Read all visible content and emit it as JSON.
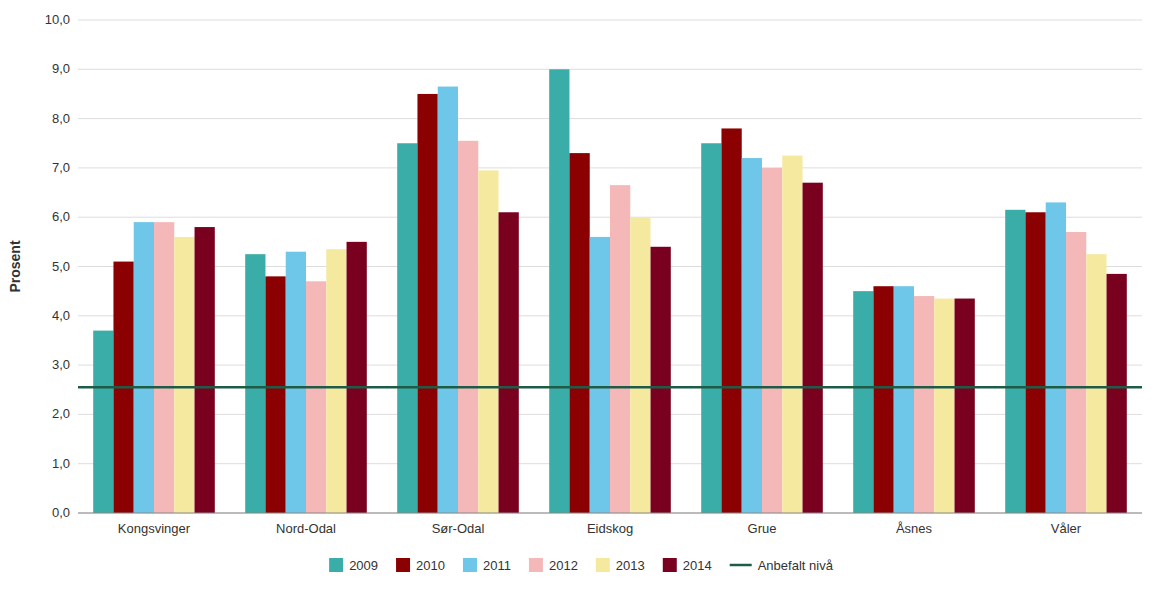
{
  "chart_data": {
    "type": "bar",
    "y_label": "Prosent",
    "categories": [
      "Kongsvinger",
      "Nord-Odal",
      "Sør-Odal",
      "Eidskog",
      "Grue",
      "Åsnes",
      "Våler"
    ],
    "series": [
      {
        "name": "2009",
        "color": "#3aada8",
        "values": [
          3.7,
          5.25,
          7.5,
          9.0,
          7.5,
          4.5,
          6.15
        ]
      },
      {
        "name": "2010",
        "color": "#8B0000",
        "values": [
          5.1,
          4.8,
          8.5,
          7.3,
          7.8,
          4.6,
          6.1
        ]
      },
      {
        "name": "2011",
        "color": "#6ec6e8",
        "values": [
          5.9,
          5.3,
          8.65,
          5.6,
          7.2,
          4.6,
          6.3
        ]
      },
      {
        "name": "2012",
        "color": "#f4b8b8",
        "values": [
          5.9,
          4.7,
          7.55,
          6.65,
          7.0,
          4.4,
          5.7
        ]
      },
      {
        "name": "2013",
        "color": "#f5e9a0",
        "values": [
          5.6,
          5.35,
          6.95,
          6.0,
          7.25,
          4.35,
          5.25
        ]
      },
      {
        "name": "2014",
        "color": "#7a0020",
        "values": [
          5.8,
          5.5,
          6.1,
          5.4,
          6.7,
          4.35,
          4.85
        ]
      }
    ],
    "reference_lines": [
      {
        "name": "Anbefalt nivå",
        "value": 2.55,
        "color": "#1f5c47"
      }
    ],
    "ylim": [
      0.0,
      10.0
    ],
    "yticks": [
      {
        "value": 0.0,
        "label": "0,0"
      },
      {
        "value": 1.0,
        "label": "1,0"
      },
      {
        "value": 2.0,
        "label": "2,0"
      },
      {
        "value": 3.0,
        "label": "3,0"
      },
      {
        "value": 4.0,
        "label": "4,0"
      },
      {
        "value": 5.0,
        "label": "5,0"
      },
      {
        "value": 6.0,
        "label": "6,0"
      },
      {
        "value": 7.0,
        "label": "7,0"
      },
      {
        "value": 8.0,
        "label": "8,0"
      },
      {
        "value": 9.0,
        "label": "9,0"
      },
      {
        "value": 10.0,
        "label": "10,0"
      }
    ],
    "grid": true,
    "legend": "bottom"
  }
}
